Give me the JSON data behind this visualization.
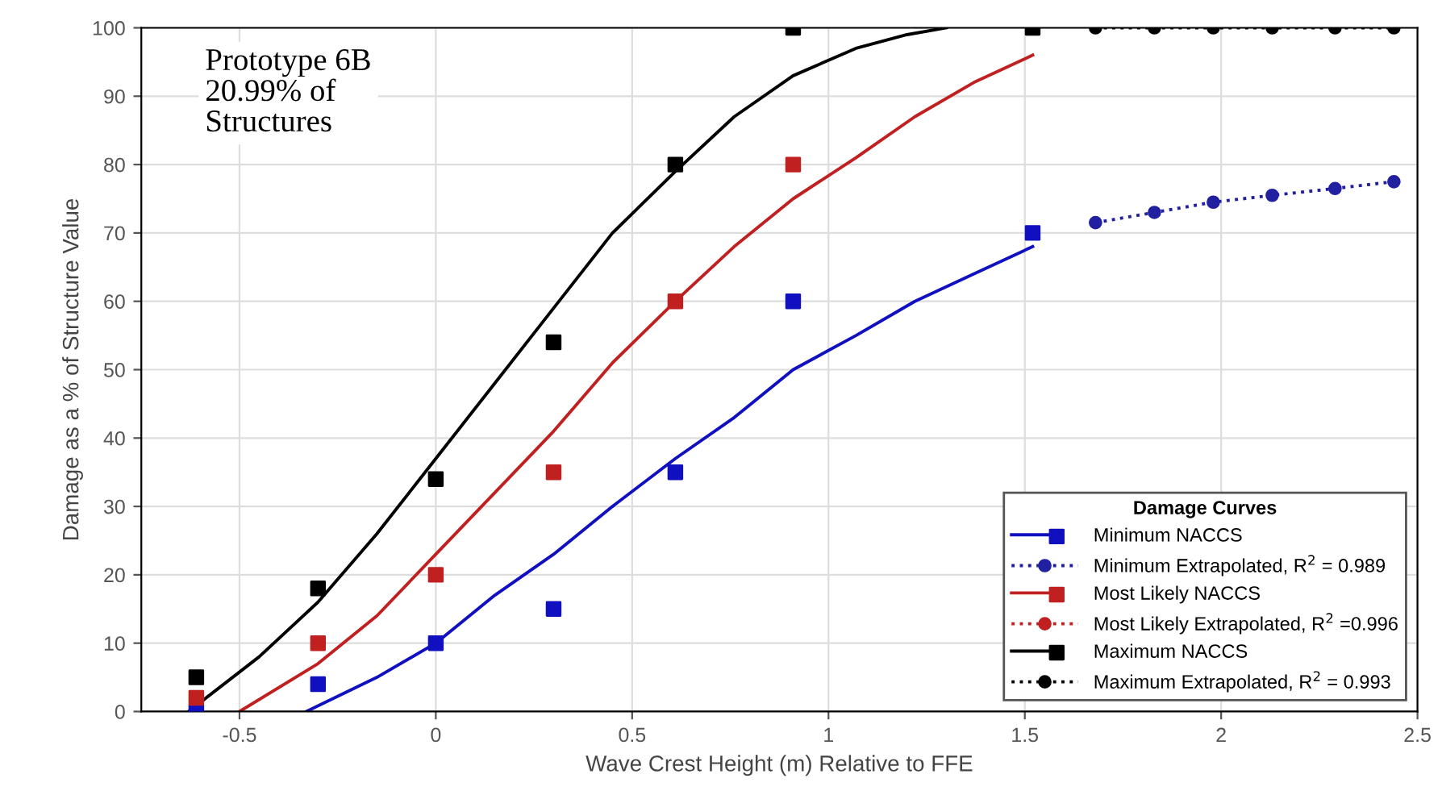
{
  "chart_data": {
    "type": "line",
    "xlabel": "Wave Crest Height (m) Relative to FFE",
    "ylabel": "Damage as a % of Structure Value",
    "xlim": [
      -0.75,
      2.5
    ],
    "xticks": [
      -0.5,
      0,
      0.5,
      1,
      1.5,
      2,
      2.5
    ],
    "ylim": [
      0,
      100
    ],
    "yticks": [
      0,
      10,
      20,
      30,
      40,
      50,
      60,
      70,
      80,
      90,
      100
    ],
    "grid": true,
    "legend": "bottom right",
    "legend_title": "Damage Curves",
    "annotations": [
      "Prototype 6B\n20.99% of\nStructures"
    ],
    "series": [
      {
        "name": "Minimum NACCS",
        "color": "#1010c0",
        "line_style": "solid",
        "marker": "none",
        "x": [
          -0.33,
          -0.15,
          0,
          0.15,
          0.3,
          0.45,
          0.61,
          0.76,
          0.91,
          1.07,
          1.22,
          1.37,
          1.52
        ],
        "values": [
          0,
          5,
          10,
          17,
          23,
          30,
          37,
          43,
          50,
          55,
          60,
          64,
          68
        ]
      },
      {
        "type": "scatter",
        "color": "#1010c0",
        "marker": "square",
        "x": [
          -0.61,
          -0.3,
          0,
          0.3,
          0.61,
          0.91,
          1.52
        ],
        "values": [
          0,
          4,
          10,
          15,
          35,
          60,
          70
        ]
      },
      {
        "name": "Minimum Extrapolated, R$^{2}$ = 0.989",
        "type": "line",
        "color": "#2020a0",
        "line_style": "dotted",
        "marker": "circle",
        "x": [
          1.68,
          1.83,
          1.98,
          2.13,
          2.29,
          2.44
        ],
        "values": [
          71.5,
          73,
          74.5,
          75.5,
          76.5,
          77.5
        ]
      },
      {
        "name": "Most Likely NACCS",
        "color": "#c02020",
        "line_style": "solid",
        "marker": "none",
        "x": [
          -0.5,
          -0.3,
          -0.15,
          0,
          0.15,
          0.3,
          0.45,
          0.61,
          0.76,
          0.91,
          1.07,
          1.22,
          1.37,
          1.52
        ],
        "values": [
          0,
          7,
          14,
          23,
          32,
          41,
          51,
          60,
          68,
          75,
          81,
          87,
          92,
          96
        ]
      },
      {
        "type": "scatter",
        "color": "#c02020",
        "marker": "square",
        "x": [
          -0.61,
          -0.3,
          0,
          0.3,
          0.61,
          0.91
        ],
        "values": [
          2,
          10,
          20,
          35,
          60,
          80
        ]
      },
      {
        "name": "Most Likely Extrapolated, R$^{2}$ =0.996",
        "type": "line",
        "color": "#c02020",
        "line_style": "dotted",
        "marker": "circle"
      },
      {
        "name": "Maximum NACCS",
        "color": "#000000",
        "line_style": "solid",
        "marker": "none",
        "x": [
          -0.63,
          -0.45,
          -0.3,
          -0.15,
          0,
          0.15,
          0.3,
          0.45,
          0.61,
          0.76,
          0.91,
          1.07,
          1.2,
          1.3
        ],
        "values": [
          0,
          8,
          16,
          26,
          37,
          48,
          59,
          70,
          79,
          87,
          93,
          97,
          99,
          100
        ]
      },
      {
        "type": "scatter",
        "color": "#000000",
        "marker": "square",
        "x": [
          -0.61,
          -0.3,
          0,
          0.3,
          0.61,
          0.91,
          1.52
        ],
        "values": [
          5,
          18,
          34,
          54,
          80,
          100,
          100
        ]
      },
      {
        "name": "Maximum Extrapolated, R$^{2}$ = 0.993",
        "type": "line",
        "color": "#000000",
        "line_style": "dotted",
        "marker": "circle",
        "x": [
          1.68,
          1.83,
          1.98,
          2.13,
          2.29,
          2.44
        ],
        "values": [
          100,
          100,
          100,
          100,
          100,
          100
        ]
      }
    ]
  }
}
